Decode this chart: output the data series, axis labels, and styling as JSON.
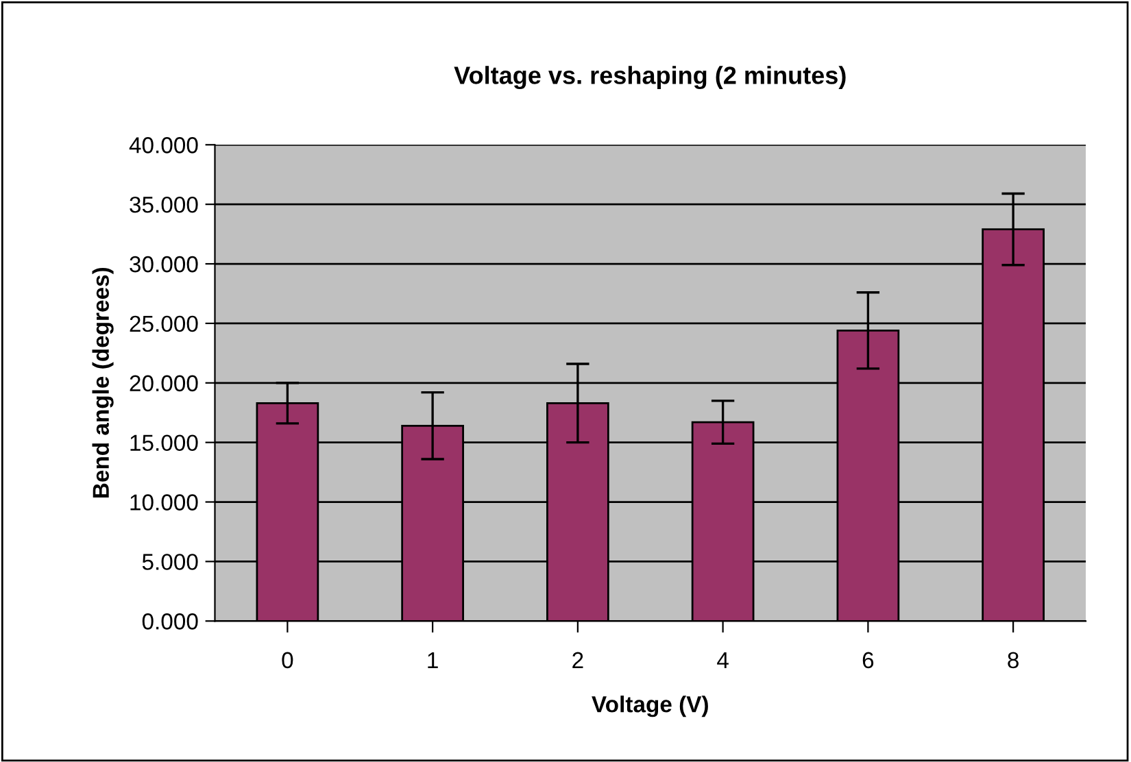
{
  "chart_data": {
    "type": "bar",
    "title": "Voltage vs. reshaping (2 minutes)",
    "xlabel": "Voltage (V)",
    "ylabel": "Bend angle (degrees)",
    "categories": [
      "0",
      "1",
      "2",
      "4",
      "6",
      "8"
    ],
    "values": [
      18.3,
      16.4,
      18.3,
      16.7,
      24.4,
      32.9
    ],
    "errors": [
      1.7,
      2.8,
      3.3,
      1.8,
      3.2,
      3.0
    ],
    "color": "#993366",
    "ylim": [
      0,
      40
    ],
    "yticks": [
      {
        "value": 0,
        "label": "0.000"
      },
      {
        "value": 5,
        "label": "5.000"
      },
      {
        "value": 10,
        "label": "10.000"
      },
      {
        "value": 15,
        "label": "15.000"
      },
      {
        "value": 20,
        "label": "20.000"
      },
      {
        "value": 25,
        "label": "25.000"
      },
      {
        "value": 30,
        "label": "30.000"
      },
      {
        "value": 35,
        "label": "35.000"
      },
      {
        "value": 40,
        "label": "40.000"
      }
    ],
    "grid": "y",
    "legend": false
  }
}
